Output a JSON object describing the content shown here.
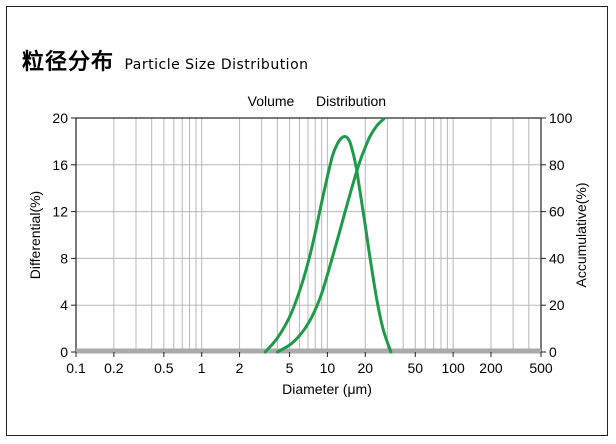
{
  "header": {
    "title_cn": "粒径分布",
    "title_en": "Particle Size Distribution"
  },
  "chart_data": {
    "type": "line",
    "title_left": "Volume",
    "title_right": "Distribution",
    "xlabel": "Diameter (μm)",
    "ylabel_left": "Differential(%)",
    "ylabel_right": "Accumulative(%)",
    "x_scale": "log",
    "xlim": [
      0.1,
      500
    ],
    "ylim_left": [
      0,
      20
    ],
    "ylim_right": [
      0,
      100
    ],
    "x_ticks": [
      0.1,
      0.2,
      0.5,
      1,
      2,
      5,
      10,
      20,
      50,
      100,
      200,
      500
    ],
    "x_tick_labels": [
      "0.1",
      "0.2",
      "0.5",
      "1",
      "2",
      "5",
      "10",
      "20",
      "50",
      "100",
      "200",
      "500"
    ],
    "y_left_ticks": [
      0,
      4,
      8,
      12,
      16,
      20
    ],
    "y_right_ticks": [
      0,
      20,
      40,
      60,
      80,
      100
    ],
    "grid": true,
    "series_color": "#1f9a4a",
    "series": [
      {
        "axis": "left",
        "x": [
          3.2,
          4.0,
          5.0,
          6.0,
          7.0,
          8.0,
          9.0,
          10.0,
          11.0,
          12.0,
          13.0,
          14.0,
          15.0,
          16.0,
          17.0,
          18.0,
          20.0,
          22.0,
          25.0,
          28.0,
          32.0
        ],
        "y": [
          0.0,
          1.2,
          3.0,
          5.2,
          7.6,
          10.2,
          12.8,
          15.0,
          16.8,
          17.8,
          18.3,
          18.4,
          18.0,
          17.0,
          15.7,
          14.0,
          10.8,
          7.8,
          4.2,
          1.8,
          0.0
        ]
      },
      {
        "axis": "right",
        "x": [
          4.0,
          5.0,
          6.0,
          7.0,
          8.0,
          9.0,
          10.0,
          12.0,
          14.0,
          16.0,
          18.0,
          20.0,
          22.0,
          25.0,
          28.0
        ],
        "y": [
          0.0,
          3.0,
          7.0,
          12.0,
          18.0,
          25.0,
          33.0,
          48.0,
          61.0,
          72.0,
          81.0,
          87.5,
          92.5,
          97.0,
          99.5
        ]
      }
    ]
  }
}
